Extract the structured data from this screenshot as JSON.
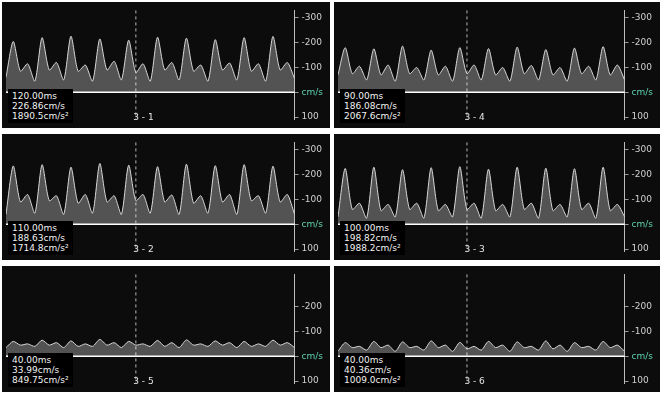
{
  "chart_data": [
    {
      "type": "line",
      "title": "3 - 1",
      "annotations": [
        "120.00ms",
        "226.86cm/s",
        "1890.5cm/s²"
      ],
      "x": [
        0,
        1,
        2,
        3,
        4,
        5,
        6,
        7,
        8,
        9,
        10,
        11,
        12,
        13,
        14,
        15,
        16,
        17,
        18,
        19,
        20,
        21,
        22,
        23,
        24,
        25,
        26,
        27,
        28,
        29,
        30,
        31,
        32,
        33,
        34,
        35,
        36,
        37,
        38,
        39,
        40
      ],
      "values": [
        -60,
        -205,
        -85,
        -115,
        -45,
        -220,
        -90,
        -120,
        -50,
        -226,
        -85,
        -110,
        -45,
        -215,
        -90,
        -125,
        -50,
        -210,
        -80,
        -115,
        -45,
        -222,
        -90,
        -120,
        -50,
        -218,
        -85,
        -110,
        -45,
        -212,
        -90,
        -118,
        -50,
        -220,
        -85,
        -115,
        -45,
        -225,
        -90,
        -120,
        -55
      ],
      "color": "#d9d9d9",
      "xlim": [
        0,
        40
      ],
      "ylim": [
        -330,
        110
      ],
      "yticks": [
        -300,
        -200,
        -100,
        {
          "value": 0,
          "label": "cm/s"
        },
        100
      ],
      "grid": false,
      "tick_labels": "y"
    },
    {
      "type": "line",
      "title": "3 - 4",
      "annotations": [
        "90.00ms",
        "186.08cm/s",
        "2067.6cm/s²"
      ],
      "x": [
        0,
        1,
        2,
        3,
        4,
        5,
        6,
        7,
        8,
        9,
        10,
        11,
        12,
        13,
        14,
        15,
        16,
        17,
        18,
        19,
        20,
        21,
        22,
        23,
        24,
        25,
        26,
        27,
        28,
        29,
        30,
        31,
        32,
        33,
        34,
        35,
        36,
        37,
        38,
        39,
        40
      ],
      "values": [
        -70,
        -180,
        -75,
        -105,
        -50,
        -175,
        -70,
        -110,
        -45,
        -186,
        -75,
        -100,
        -50,
        -170,
        -70,
        -105,
        -45,
        -180,
        -75,
        -110,
        -50,
        -176,
        -70,
        -100,
        -45,
        -182,
        -75,
        -108,
        -50,
        -172,
        -70,
        -100,
        -45,
        -178,
        -75,
        -105,
        -50,
        -184,
        -70,
        -110,
        -50
      ],
      "color": "#d9d9d9",
      "xlim": [
        0,
        40
      ],
      "ylim": [
        -330,
        110
      ],
      "yticks": [
        -300,
        -200,
        -100,
        {
          "value": 0,
          "label": "cm/s"
        },
        100
      ],
      "grid": false,
      "tick_labels": "y"
    },
    {
      "type": "line",
      "title": "3 - 2",
      "annotations": [
        "110.00ms",
        "188.63cm/s",
        "1714.8cm/s²"
      ],
      "x": [
        0,
        1,
        2,
        3,
        4,
        5,
        6,
        7,
        8,
        9,
        10,
        11,
        12,
        13,
        14,
        15,
        16,
        17,
        18,
        19,
        20,
        21,
        22,
        23,
        24,
        25,
        26,
        27,
        28,
        29,
        30,
        31,
        32,
        33,
        34,
        35,
        36,
        37,
        38,
        39,
        40
      ],
      "values": [
        -40,
        -235,
        -90,
        -120,
        -45,
        -240,
        -95,
        -115,
        -40,
        -230,
        -85,
        -120,
        -45,
        -245,
        -90,
        -115,
        -40,
        -238,
        -95,
        -120,
        -45,
        -232,
        -90,
        -118,
        -40,
        -242,
        -85,
        -115,
        -45,
        -236,
        -90,
        -120,
        -40,
        -240,
        -95,
        -115,
        -45,
        -234,
        -90,
        -120,
        -40
      ],
      "color": "#d9d9d9",
      "xlim": [
        0,
        40
      ],
      "ylim": [
        -330,
        110
      ],
      "yticks": [
        -300,
        -200,
        -100,
        {
          "value": 0,
          "label": "cm/s"
        },
        100
      ],
      "grid": false,
      "tick_labels": "y"
    },
    {
      "type": "line",
      "title": "3 - 3",
      "annotations": [
        "100.00ms",
        "198.82cm/s",
        "1988.2cm/s²"
      ],
      "x": [
        0,
        1,
        2,
        3,
        4,
        5,
        6,
        7,
        8,
        9,
        10,
        11,
        12,
        13,
        14,
        15,
        16,
        17,
        18,
        19,
        20,
        21,
        22,
        23,
        24,
        25,
        26,
        27,
        28,
        29,
        30,
        31,
        32,
        33,
        34,
        35,
        36,
        37,
        38,
        39,
        40
      ],
      "values": [
        -30,
        -225,
        -60,
        -85,
        -25,
        -230,
        -55,
        -80,
        -30,
        -220,
        -60,
        -85,
        -25,
        -228,
        -55,
        -80,
        -30,
        -232,
        -60,
        -85,
        -25,
        -222,
        -55,
        -80,
        -30,
        -230,
        -60,
        -85,
        -25,
        -226,
        -55,
        -80,
        -30,
        -224,
        -60,
        -85,
        -25,
        -230,
        -55,
        -80,
        -30
      ],
      "color": "#d9d9d9",
      "xlim": [
        0,
        40
      ],
      "ylim": [
        -330,
        110
      ],
      "yticks": [
        -300,
        -200,
        -100,
        {
          "value": 0,
          "label": "cm/s"
        },
        100
      ],
      "grid": false,
      "tick_labels": "y"
    },
    {
      "type": "line",
      "title": "3 - 5",
      "annotations": [
        "40.00ms",
        "33.99cm/s",
        "849.75cm/s²"
      ],
      "x": [
        0,
        1,
        2,
        3,
        4,
        5,
        6,
        7,
        8,
        9,
        10,
        11,
        12,
        13,
        14,
        15,
        16,
        17,
        18,
        19,
        20,
        21,
        22,
        23,
        24,
        25,
        26,
        27,
        28,
        29,
        30,
        31,
        32,
        33,
        34,
        35,
        36,
        37,
        38,
        39,
        40
      ],
      "values": [
        -35,
        -60,
        -45,
        -50,
        -40,
        -65,
        -45,
        -55,
        -35,
        -62,
        -40,
        -50,
        -40,
        -68,
        -45,
        -55,
        -35,
        -60,
        -45,
        -50,
        -40,
        -64,
        -40,
        -55,
        -35,
        -66,
        -45,
        -50,
        -40,
        -62,
        -45,
        -55,
        -35,
        -60,
        -40,
        -50,
        -40,
        -65,
        -45,
        -55,
        -35
      ],
      "color": "#d9d9d9",
      "xlim": [
        0,
        40
      ],
      "ylim": [
        -330,
        110
      ],
      "yticks": [
        -200,
        -100,
        {
          "value": 0,
          "label": "cm/s"
        },
        100
      ],
      "grid": false,
      "tick_labels": "y"
    },
    {
      "type": "line",
      "title": "3 - 6",
      "annotations": [
        "40.00ms",
        "40.36cm/s",
        "1009.0cm/s²"
      ],
      "x": [
        0,
        1,
        2,
        3,
        4,
        5,
        6,
        7,
        8,
        9,
        10,
        11,
        12,
        13,
        14,
        15,
        16,
        17,
        18,
        19,
        20,
        21,
        22,
        23,
        24,
        25,
        26,
        27,
        28,
        29,
        30,
        31,
        32,
        33,
        34,
        35,
        36,
        37,
        38,
        39,
        40
      ],
      "values": [
        -20,
        -55,
        -35,
        -40,
        -25,
        -60,
        -35,
        -45,
        -20,
        -58,
        -35,
        -40,
        -25,
        -62,
        -35,
        -45,
        -20,
        -56,
        -30,
        -40,
        -25,
        -60,
        -35,
        -45,
        -20,
        -58,
        -35,
        -40,
        -25,
        -62,
        -30,
        -45,
        -20,
        -55,
        -35,
        -40,
        -25,
        -60,
        -35,
        -45,
        -20
      ],
      "color": "#d9d9d9",
      "xlim": [
        0,
        40
      ],
      "ylim": [
        -330,
        110
      ],
      "yticks": [
        -200,
        -100,
        {
          "value": 0,
          "label": "cm/s"
        },
        100
      ],
      "grid": false,
      "tick_labels": "y"
    }
  ]
}
